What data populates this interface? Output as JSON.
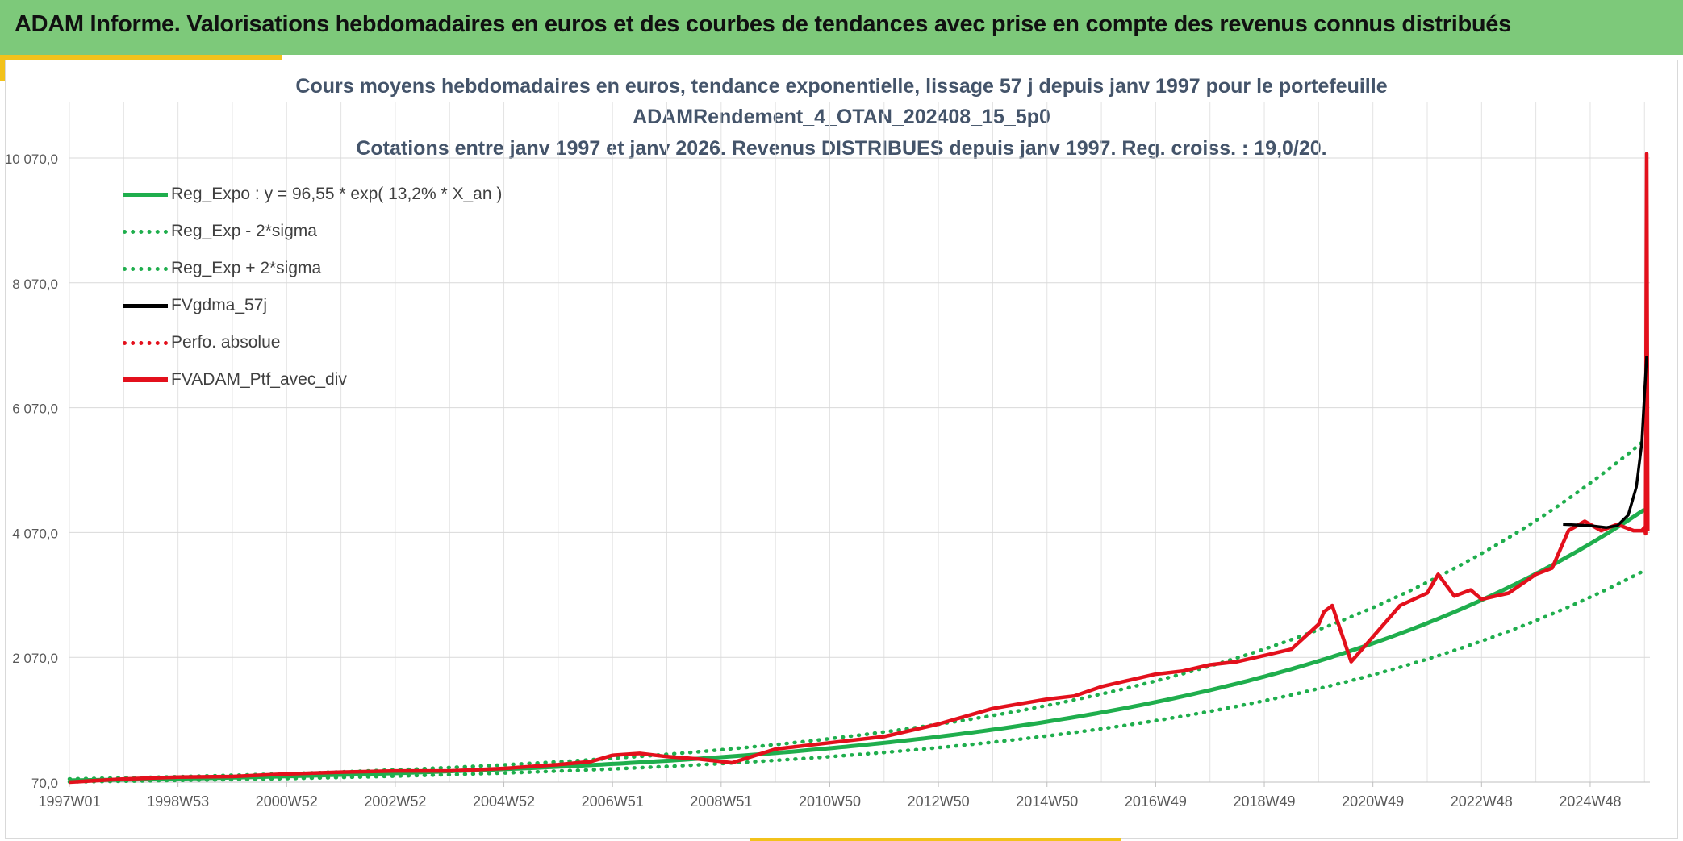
{
  "banner": {
    "title": "ADAM Informe. Valorisations hebdomadaires en euros et des courbes de tendances avec prise en compte des revenus connus distribués"
  },
  "colors": {
    "banner": "#7dc97a",
    "accent": "#f2c21b",
    "trend": "#1fae4d",
    "gdma": "#000000",
    "portfolio": "#e3101c",
    "title": "#44546a"
  },
  "chart_data": {
    "type": "line",
    "title": [
      "Cours moyens hebdomadaires en euros, tendance exponentielle, lissage 57 j depuis janv 1997 pour le portefeuille",
      "ADAMRendement_4_OTAN_202408_15_5p0",
      "Cotations entre janv 1997 et janv 2026. Revenus DISTRIBUES depuis janv 1997. Reg. croiss. : 19,0/20."
    ],
    "xlabel": "",
    "ylabel": "",
    "x_tick_labels": [
      "1997W01",
      "1998W53",
      "2000W52",
      "2002W52",
      "2004W52",
      "2006W51",
      "2008W51",
      "2010W50",
      "2012W50",
      "2014W50",
      "2016W49",
      "2018W49",
      "2020W49",
      "2022W48",
      "2024W48"
    ],
    "x_tick_years": [
      1997.0,
      1999.0,
      2001.0,
      2003.0,
      2005.0,
      2007.0,
      2009.0,
      2011.0,
      2013.0,
      2015.0,
      2017.0,
      2019.0,
      2021.0,
      2023.0,
      2025.0
    ],
    "xlim": [
      1997.0,
      2026.1
    ],
    "ylim": [
      70,
      10070
    ],
    "y_tick_values": [
      70,
      2070,
      4070,
      6070,
      8070,
      10070
    ],
    "y_tick_labels": [
      "70,0",
      "2 070,0",
      "4 070,0",
      "6 070,0",
      "8 070,0",
      "10 070,0"
    ],
    "grid": true,
    "legend_position": "top-left",
    "legend": [
      "Reg_Expo : y = 96,55 * exp( 13,2% *  X_an )",
      "Reg_Exp - 2*sigma",
      "Reg_Exp + 2*sigma",
      "FVgdma_57j",
      "Perfo. absolue",
      "FVADAM_Ptf_avec_div"
    ],
    "series": [
      {
        "name": "FVADAM_Ptf_avec_div",
        "color": "#e3101c",
        "x": [
          1997.0,
          1998.0,
          1999.0,
          2000.0,
          2001.0,
          2002.0,
          2003.0,
          2004.0,
          2005.0,
          2006.0,
          2006.6,
          2007.0,
          2007.5,
          2008.0,
          2008.6,
          2009.2,
          2010.0,
          2011.0,
          2012.0,
          2013.0,
          2014.0,
          2015.0,
          2015.5,
          2016.0,
          2016.5,
          2017.0,
          2017.5,
          2018.0,
          2018.5,
          2019.0,
          2019.5,
          2020.0,
          2020.1,
          2020.25,
          2020.6,
          2021.0,
          2021.5,
          2022.0,
          2022.2,
          2022.5,
          2022.8,
          2023.0,
          2023.5,
          2024.0,
          2024.3,
          2024.6,
          2024.9,
          2025.2,
          2025.5,
          2025.8,
          2025.95,
          2026.0,
          2026.02,
          2026.04,
          2026.06
        ],
        "y": [
          70,
          120,
          150,
          160,
          200,
          230,
          250,
          250,
          290,
          350,
          400,
          500,
          530,
          480,
          440,
          380,
          600,
          700,
          800,
          1000,
          1250,
          1400,
          1450,
          1600,
          1700,
          1800,
          1850,
          1950,
          2000,
          2100,
          2200,
          2600,
          2800,
          2900,
          2000,
          2400,
          2900,
          3100,
          3400,
          3050,
          3150,
          3000,
          3100,
          3400,
          3500,
          4100,
          4250,
          4100,
          4200,
          4100,
          4100,
          4150,
          4050,
          10140,
          4100
        ]
      },
      {
        "name": "FVgdma_57j",
        "color": "#000000",
        "x": [
          2024.5,
          2025.0,
          2025.3,
          2025.5,
          2025.7,
          2025.85,
          2025.95,
          2026.0,
          2026.04
        ],
        "y": [
          4200,
          4180,
          4150,
          4180,
          4350,
          4800,
          5500,
          6300,
          6900
        ]
      }
    ],
    "regression": {
      "a": 96.55,
      "rate": 0.132,
      "x0": 1997.0,
      "sigma_factor_low": 0.78,
      "sigma_factor_high": 1.25
    }
  }
}
